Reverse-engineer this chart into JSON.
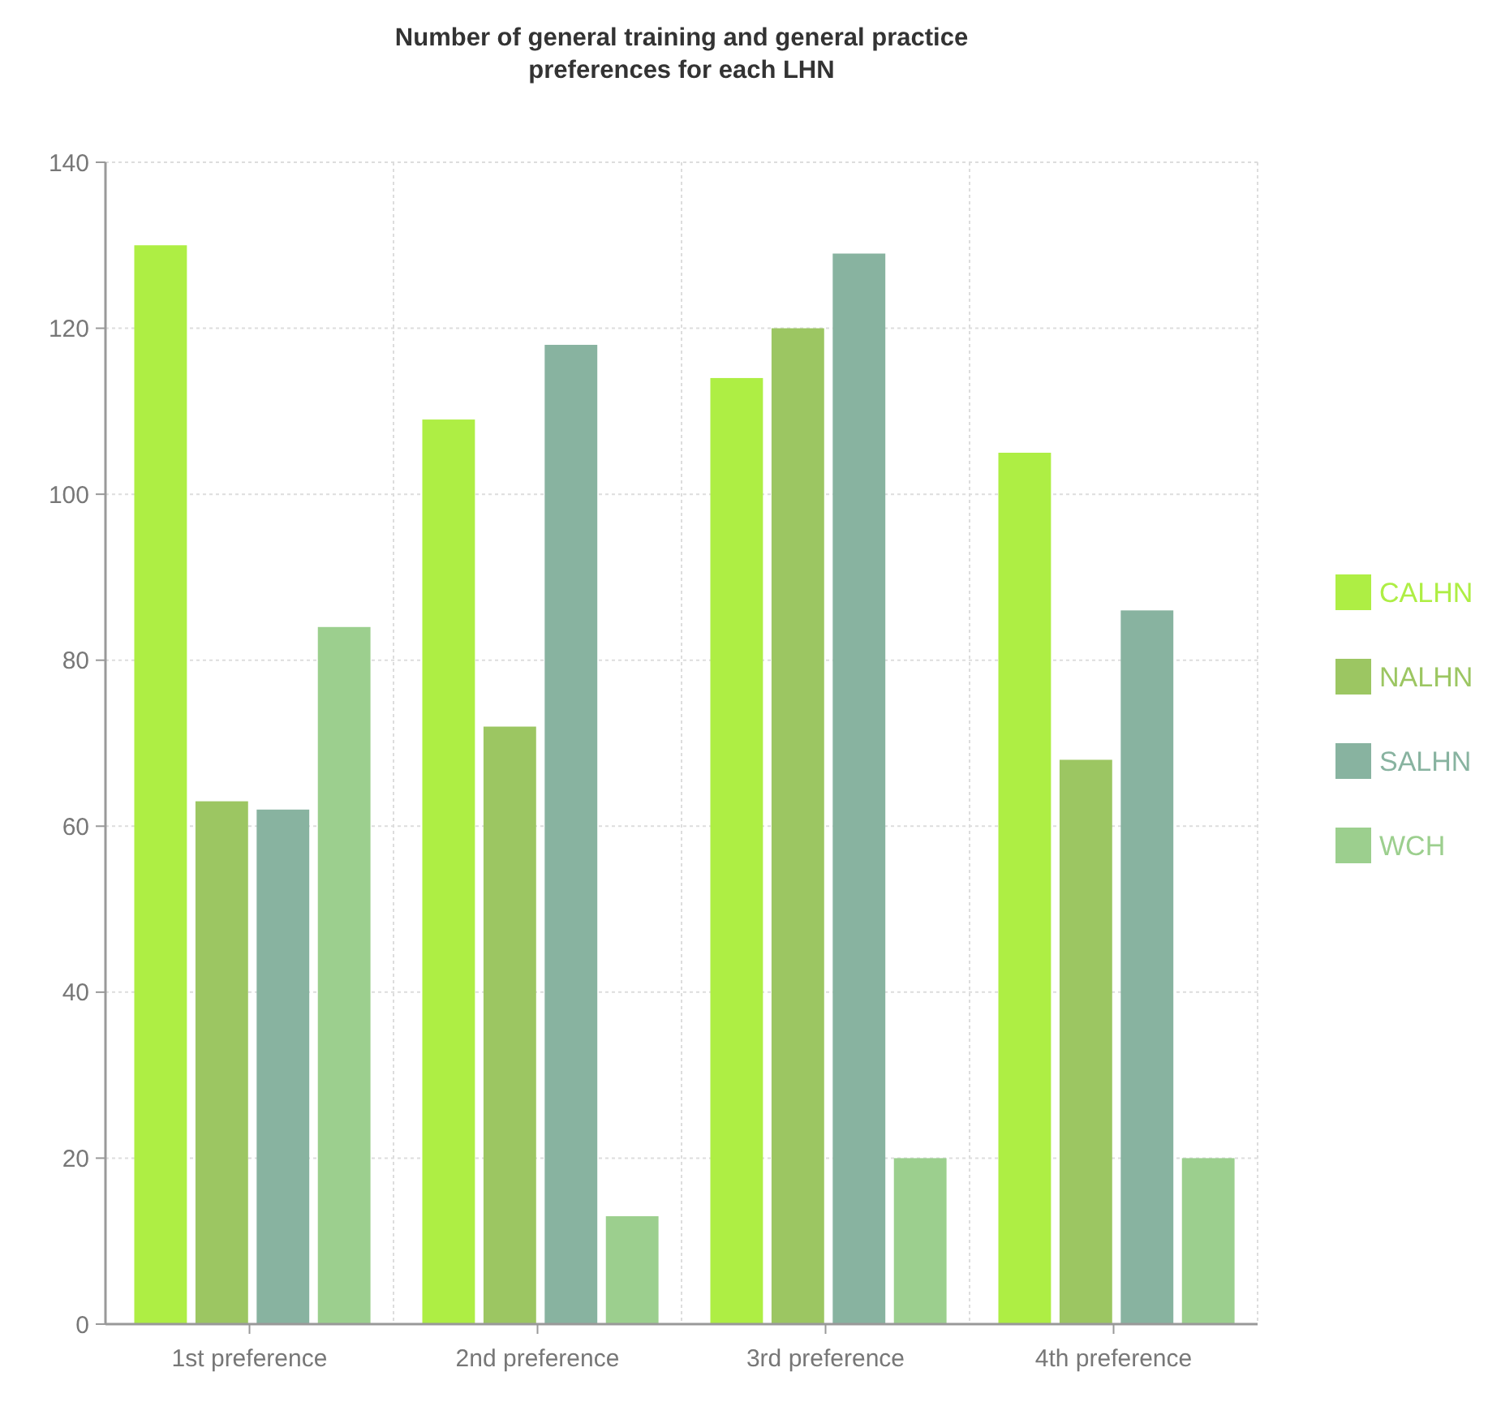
{
  "chart_data": {
    "type": "bar",
    "title": "Number of general training and general practice preferences for each LHN",
    "categories": [
      "1st preference",
      "2nd preference",
      "3rd preference",
      "4th preference"
    ],
    "series": [
      {
        "name": "CALHN",
        "color": "#aeee44",
        "values": [
          130,
          109,
          114,
          105
        ]
      },
      {
        "name": "NALHN",
        "color": "#9cc662",
        "values": [
          63,
          72,
          120,
          68
        ]
      },
      {
        "name": "SALHN",
        "color": "#88b3a0",
        "values": [
          62,
          118,
          129,
          86
        ]
      },
      {
        "name": "WCH",
        "color": "#9ccf8e",
        "values": [
          84,
          13,
          20,
          20
        ]
      }
    ],
    "ylim": [
      0,
      140
    ],
    "yticks": [
      0,
      20,
      40,
      60,
      80,
      100,
      120,
      140
    ],
    "grid": true,
    "legend": "right"
  }
}
